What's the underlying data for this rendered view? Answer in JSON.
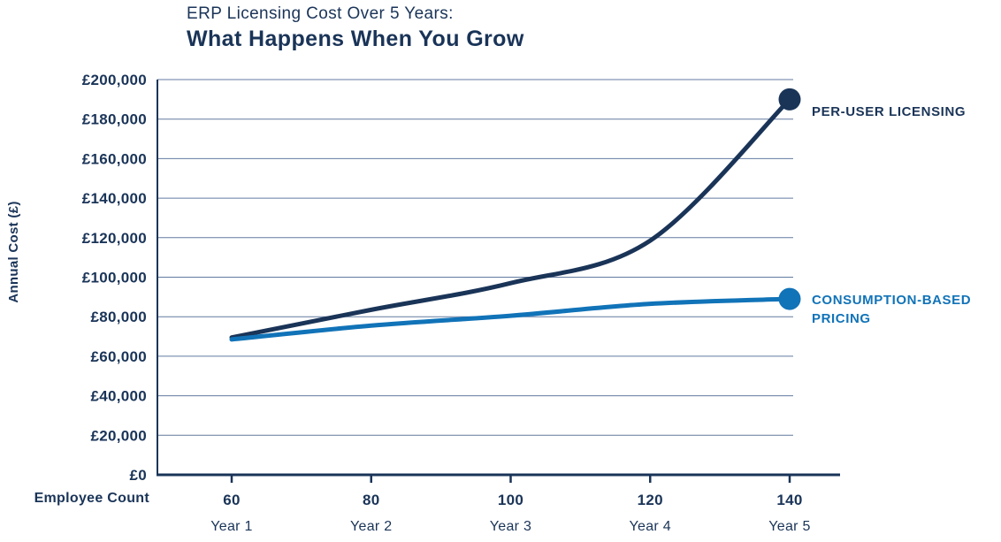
{
  "title": {
    "line1": "ERP Licensing Cost Over 5 Years:",
    "line2": "What Happens When You Grow"
  },
  "colors": {
    "navy": "#1a3458",
    "blue": "#1173b8",
    "grid": "#2f4e80",
    "background": "#ffffff"
  },
  "chart_data": {
    "type": "line",
    "title": "ERP Licensing Cost Over 5 Years: What Happens When You Grow",
    "xlabel": "Employee Count",
    "ylabel": "Annual Cost (£)",
    "x_employees": [
      "60",
      "80",
      "100",
      "120",
      "140"
    ],
    "x_years": [
      "Year 1",
      "Year 2",
      "Year 3",
      "Year 4",
      "Year 5"
    ],
    "ylim": [
      0,
      200000
    ],
    "y_tick_step": 20000,
    "y_tick_labels": [
      "£0",
      "£20,000",
      "£40,000",
      "£60,000",
      "£80,000",
      "£100,000",
      "£120,000",
      "£140,000",
      "£160,000",
      "£180,000",
      "£200,000"
    ],
    "grid": "horizontal",
    "legend_position": "right of line endpoints",
    "series": [
      {
        "name": "PER-USER LICENSING",
        "color": "#1a3458",
        "values": [
          69500,
          83500,
          97000,
          118500,
          190000
        ],
        "marker_end": true
      },
      {
        "name": "CONSUMPTION-BASED PRICING",
        "color": "#1173b8",
        "values": [
          68500,
          75500,
          80500,
          86500,
          89000
        ],
        "marker_end": true
      }
    ]
  }
}
